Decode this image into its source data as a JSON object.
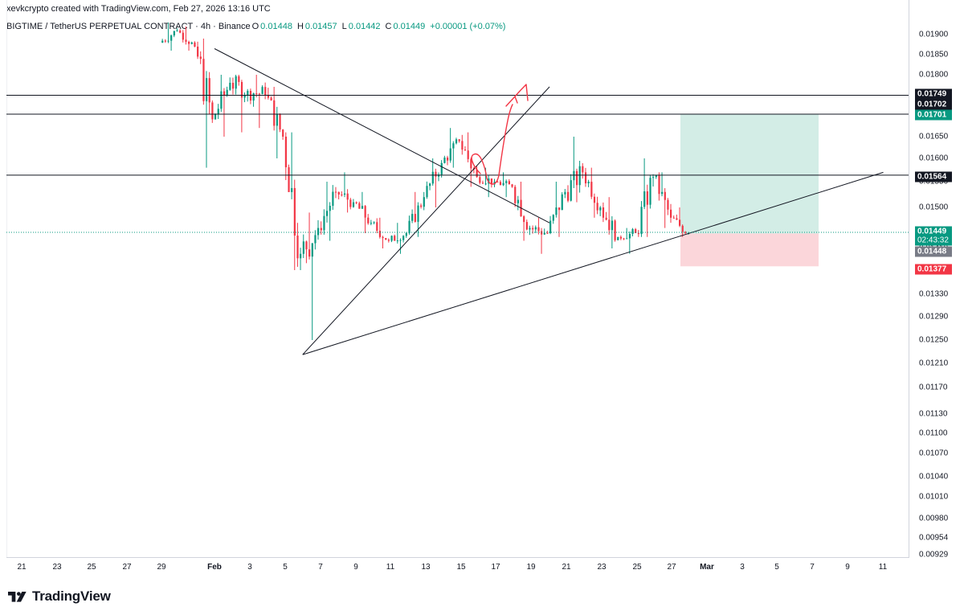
{
  "header": {
    "attribution": "xevkcrypto created with TradingView.com, Feb 27, 2026 13:16 UTC",
    "symbol": "BIGTIME / TetherUS PERPETUAL CONTRACT · 4h · Binance",
    "ohlc": {
      "open_label": "O",
      "open": "0.01448",
      "high_label": "H",
      "high": "0.01457",
      "low_label": "L",
      "low": "0.01442",
      "close_label": "C",
      "close": "0.01449",
      "change": "+0.00001 (+0.07%)"
    }
  },
  "brand": {
    "name": "TradingView"
  },
  "colors": {
    "up": "#089981",
    "down": "#f23645",
    "target_zone": "#d3ede6",
    "stop_zone": "#fbd6da",
    "line": "#131722"
  },
  "chart_data": {
    "type": "candlestick",
    "interval": "4h",
    "y_axis": {
      "ticks": [
        "0.01900",
        "0.01850",
        "0.01800",
        "0.01750",
        "0.01700",
        "0.01650",
        "0.01600",
        "0.01550",
        "0.01500",
        "0.01450",
        "0.01410",
        "0.01370",
        "0.01330",
        "0.01290",
        "0.01250",
        "0.01210",
        "0.01170",
        "0.01130",
        "0.01100",
        "0.01070",
        "0.01040",
        "0.01010",
        "0.00980",
        "0.00954",
        "0.00929"
      ]
    },
    "x_axis": {
      "ticks": [
        "21",
        "23",
        "25",
        "27",
        "29",
        "Feb",
        "3",
        "5",
        "7",
        "9",
        "11",
        "13",
        "15",
        "17",
        "19",
        "21",
        "23",
        "25",
        "27",
        "Mar",
        "3",
        "5",
        "7",
        "9",
        "11"
      ]
    },
    "candles_daily_approx": [
      {
        "date": "Jan 29",
        "open": 0.0188,
        "high": 0.0193,
        "low": 0.0186,
        "close": 0.0191
      },
      {
        "date": "Jan 30",
        "open": 0.0191,
        "high": 0.0192,
        "low": 0.0186,
        "close": 0.0187
      },
      {
        "date": "Jan 31",
        "open": 0.0187,
        "high": 0.0189,
        "low": 0.0158,
        "close": 0.0169
      },
      {
        "date": "Feb 1",
        "open": 0.0169,
        "high": 0.018,
        "low": 0.0165,
        "close": 0.0178
      },
      {
        "date": "Feb 2",
        "open": 0.0178,
        "high": 0.018,
        "low": 0.0166,
        "close": 0.0176
      },
      {
        "date": "Feb 3",
        "open": 0.0176,
        "high": 0.018,
        "low": 0.0167,
        "close": 0.0175
      },
      {
        "date": "Feb 4",
        "open": 0.0175,
        "high": 0.0177,
        "low": 0.016,
        "close": 0.0165
      },
      {
        "date": "Feb 5",
        "open": 0.0165,
        "high": 0.0166,
        "low": 0.0137,
        "close": 0.014
      },
      {
        "date": "Feb 6",
        "open": 0.014,
        "high": 0.0149,
        "low": 0.0125,
        "close": 0.0146
      },
      {
        "date": "Feb 7",
        "open": 0.0146,
        "high": 0.0155,
        "low": 0.0143,
        "close": 0.0153
      },
      {
        "date": "Feb 8",
        "open": 0.0153,
        "high": 0.0157,
        "low": 0.0149,
        "close": 0.0151
      },
      {
        "date": "Feb 9",
        "open": 0.0151,
        "high": 0.0153,
        "low": 0.0145,
        "close": 0.0147
      },
      {
        "date": "Feb 10",
        "open": 0.0147,
        "high": 0.0148,
        "low": 0.0141,
        "close": 0.0143
      },
      {
        "date": "Feb 11",
        "open": 0.0143,
        "high": 0.0147,
        "low": 0.014,
        "close": 0.0145
      },
      {
        "date": "Feb 12",
        "open": 0.0145,
        "high": 0.0153,
        "low": 0.0144,
        "close": 0.0152
      },
      {
        "date": "Feb 13",
        "open": 0.0152,
        "high": 0.016,
        "low": 0.015,
        "close": 0.0159
      },
      {
        "date": "Feb 14",
        "open": 0.0159,
        "high": 0.0167,
        "low": 0.0158,
        "close": 0.0164
      },
      {
        "date": "Feb 15",
        "open": 0.0164,
        "high": 0.0166,
        "low": 0.0154,
        "close": 0.0156
      },
      {
        "date": "Feb 16",
        "open": 0.0156,
        "high": 0.0158,
        "low": 0.0152,
        "close": 0.0155
      },
      {
        "date": "Feb 17",
        "open": 0.0155,
        "high": 0.0157,
        "low": 0.0152,
        "close": 0.0154
      },
      {
        "date": "Feb 18",
        "open": 0.0154,
        "high": 0.0155,
        "low": 0.0143,
        "close": 0.0146
      },
      {
        "date": "Feb 19",
        "open": 0.0146,
        "high": 0.0148,
        "low": 0.014,
        "close": 0.0145
      },
      {
        "date": "Feb 20",
        "open": 0.0145,
        "high": 0.0155,
        "low": 0.0144,
        "close": 0.0153
      },
      {
        "date": "Feb 21",
        "open": 0.0153,
        "high": 0.0165,
        "low": 0.0151,
        "close": 0.0157
      },
      {
        "date": "Feb 22",
        "open": 0.0157,
        "high": 0.0158,
        "low": 0.0148,
        "close": 0.015
      },
      {
        "date": "Feb 23",
        "open": 0.015,
        "high": 0.0152,
        "low": 0.0141,
        "close": 0.0144
      },
      {
        "date": "Feb 24",
        "open": 0.0144,
        "high": 0.0146,
        "low": 0.014,
        "close": 0.0145
      },
      {
        "date": "Feb 25",
        "open": 0.0145,
        "high": 0.016,
        "low": 0.0144,
        "close": 0.0156
      },
      {
        "date": "Feb 26",
        "open": 0.0156,
        "high": 0.0157,
        "low": 0.0146,
        "close": 0.0148
      },
      {
        "date": "Feb 27",
        "open": 0.0148,
        "high": 0.015,
        "low": 0.0144,
        "close": 0.0145
      }
    ],
    "horizontal_levels": [
      0.01749,
      0.01702,
      0.01564
    ],
    "trendlines": [
      {
        "from": {
          "date": "Feb 1",
          "price": 0.01865
        },
        "to": {
          "date": "Feb 20",
          "price": 0.0147
        }
      },
      {
        "from": {
          "date": "Feb 6",
          "price": 0.01225
        },
        "to": {
          "date": "Feb 20",
          "price": 0.0177
        }
      },
      {
        "from": {
          "date": "Feb 6",
          "price": 0.01225
        },
        "to": {
          "date": "Mar 11",
          "price": 0.0157
        }
      }
    ],
    "long_position": {
      "entry": 0.01449,
      "target": 0.01701,
      "stop": 0.01377
    },
    "price_labels": {
      "level_1": "0.01749",
      "level_2": "0.01702",
      "target": "0.01701",
      "level_3": "0.01564",
      "current": "0.01449",
      "countdown": "02:43:32",
      "prev_close": "0.01448",
      "stop": "0.01377"
    }
  }
}
